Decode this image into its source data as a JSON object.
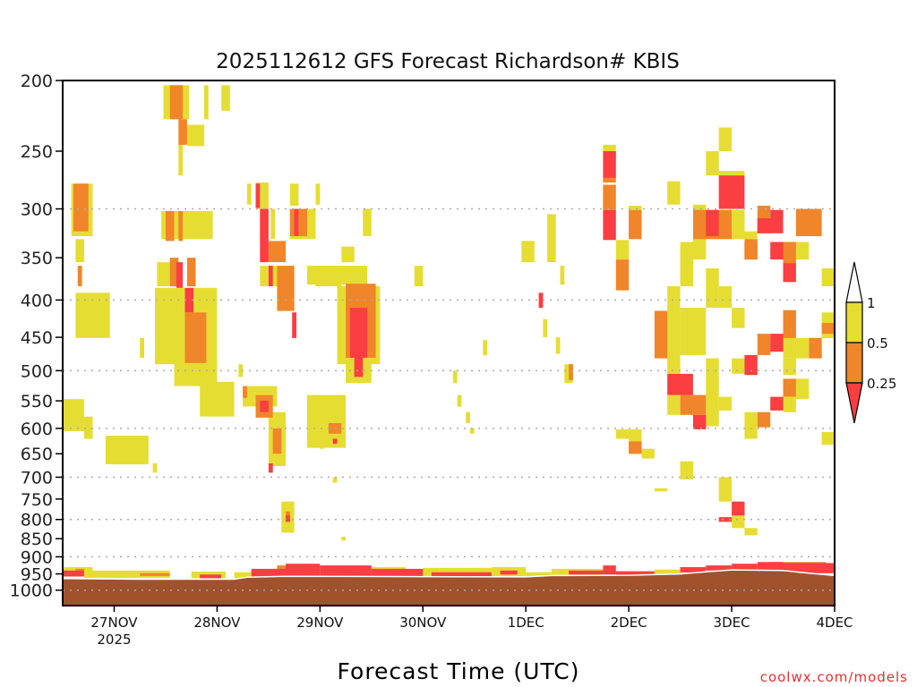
{
  "chart_data": {
    "type": "heatmap",
    "title": "2025112612 GFS Forecast Richardson# KBIS",
    "xlabel": "Forecast Time (UTC)",
    "ylabel": "",
    "credit": "coolwx.com/models",
    "x_units": "hours since 26NOV2025 12Z",
    "xlim": [
      0,
      180
    ],
    "ylim": [
      200,
      1050
    ],
    "y_scale": "log-pressure (inverted)",
    "grid": "dotted at 300,400,500,600,700,800,900,1000",
    "y_ticks": [
      200,
      250,
      300,
      350,
      400,
      450,
      500,
      550,
      600,
      650,
      700,
      750,
      800,
      850,
      900,
      950,
      1000
    ],
    "y_gridlines": [
      300,
      400,
      500,
      600,
      700,
      800,
      900,
      1000
    ],
    "x_ticks": [
      {
        "hour": 12,
        "label": "27NOV",
        "sublabel": "2025"
      },
      {
        "hour": 36,
        "label": "28NOV"
      },
      {
        "hour": 60,
        "label": "29NOV"
      },
      {
        "hour": 84,
        "label": "30NOV"
      },
      {
        "hour": 108,
        "label": "1DEC"
      },
      {
        "hour": 132,
        "label": "2DEC"
      },
      {
        "hour": 156,
        "label": "3DEC"
      },
      {
        "hour": 180,
        "label": "4DEC"
      }
    ],
    "legend": {
      "placement": "right",
      "levels": [
        "1",
        "0.5",
        "0.25"
      ],
      "categories": [
        {
          "range": "0.5-1",
          "color": "#e6dd33"
        },
        {
          "range": "0.25-0.5",
          "color": "#f0852a"
        },
        {
          "range": "<0.25",
          "color": "#fb3e41"
        }
      ]
    },
    "colors": {
      "1": "#e6dd33",
      "2": "#f0852a",
      "3": "#fb3e41",
      "ground": "#a0522d"
    },
    "cell_format": [
      "hour_start",
      "hour_end",
      "p_top",
      "p_bottom",
      "category"
    ],
    "cells": [
      [
        2,
        7,
        277,
        327,
        1
      ],
      [
        2.5,
        6,
        277,
        322,
        2
      ],
      [
        3,
        5,
        330,
        355,
        1
      ],
      [
        3.5,
        4.5,
        359,
        383,
        2
      ],
      [
        3,
        11,
        391,
        451,
        1
      ],
      [
        0,
        5,
        547,
        605,
        1
      ],
      [
        5,
        7,
        578,
        620,
        1
      ],
      [
        10,
        20,
        614,
        672,
        1
      ],
      [
        12,
        14,
        630,
        645,
        1
      ],
      [
        21,
        22,
        670,
        690,
        1
      ],
      [
        18,
        19,
        451,
        480,
        1
      ],
      [
        23.5,
        29.5,
        203,
        226,
        1
      ],
      [
        25,
        28,
        203,
        226,
        2
      ],
      [
        27,
        29,
        226,
        245,
        2
      ],
      [
        29,
        33,
        230,
        246,
        1
      ],
      [
        27,
        28,
        245,
        270,
        1
      ],
      [
        33,
        34,
        203,
        226,
        1
      ],
      [
        37,
        39,
        203,
        220,
        1
      ],
      [
        23,
        35,
        302,
        330,
        1
      ],
      [
        24,
        26,
        302,
        332,
        2
      ],
      [
        27,
        28,
        302,
        332,
        2
      ],
      [
        22,
        25,
        355,
        383,
        1
      ],
      [
        25,
        27,
        350,
        383,
        2
      ],
      [
        29,
        31,
        350,
        383,
        2
      ],
      [
        21.5,
        36,
        385,
        490,
        1
      ],
      [
        28.5,
        33.5,
        416,
        488,
        2
      ],
      [
        28.5,
        30.5,
        385,
        416,
        3
      ],
      [
        26.5,
        28,
        355,
        385,
        3
      ],
      [
        26,
        36,
        480,
        525,
        1
      ],
      [
        32,
        40,
        518,
        578,
        1
      ],
      [
        41,
        42,
        490,
        510,
        1
      ],
      [
        42,
        43,
        525,
        545,
        2
      ],
      [
        43,
        44,
        277,
        296,
        1
      ],
      [
        45,
        48,
        276,
        300,
        1
      ],
      [
        45,
        46,
        277,
        299,
        3
      ],
      [
        53,
        55,
        277,
        297,
        1
      ],
      [
        59,
        60,
        277,
        296,
        1
      ],
      [
        46,
        48,
        300,
        355,
        3
      ],
      [
        48,
        52,
        332,
        355,
        2
      ],
      [
        48.5,
        49.5,
        300,
        330,
        1
      ],
      [
        53,
        59,
        300,
        330,
        1
      ],
      [
        53,
        57,
        300,
        327,
        2
      ],
      [
        54,
        55,
        300,
        327,
        3
      ],
      [
        70,
        72,
        300,
        327,
        1
      ],
      [
        65,
        68,
        338,
        355,
        1
      ],
      [
        57,
        71,
        359,
        381,
        1
      ],
      [
        46,
        50,
        359,
        383,
        1
      ],
      [
        48,
        49,
        359,
        383,
        3
      ],
      [
        50,
        54,
        359,
        414,
        2
      ],
      [
        53.5,
        54.5,
        416,
        451,
        3
      ],
      [
        59,
        65,
        359,
        383,
        1
      ],
      [
        64,
        74,
        383,
        490,
        1
      ],
      [
        66,
        73,
        380,
        480,
        2
      ],
      [
        67,
        71,
        410,
        480,
        3
      ],
      [
        66,
        72,
        454,
        520,
        1
      ],
      [
        68,
        70,
        454,
        510,
        3
      ],
      [
        42,
        50,
        525,
        560,
        1
      ],
      [
        45,
        49,
        540,
        580,
        2
      ],
      [
        46,
        48,
        550,
        570,
        3
      ],
      [
        48,
        52,
        570,
        676,
        1
      ],
      [
        49,
        51,
        600,
        650,
        2
      ],
      [
        48,
        49,
        670,
        690,
        3
      ],
      [
        51,
        54,
        756,
        834,
        1
      ],
      [
        52,
        53,
        780,
        800,
        2
      ],
      [
        52,
        53,
        790,
        806,
        3
      ],
      [
        57,
        66,
        540,
        638,
        1
      ],
      [
        62,
        65,
        590,
        610,
        2
      ],
      [
        63,
        64,
        620,
        630,
        3
      ],
      [
        63,
        64,
        700,
        712,
        1
      ],
      [
        65,
        66,
        845,
        855,
        1
      ],
      [
        60,
        61,
        620,
        640,
        1
      ],
      [
        82,
        84,
        359,
        383,
        1
      ],
      [
        91,
        92,
        500,
        520,
        1
      ],
      [
        92,
        93,
        540,
        560,
        1
      ],
      [
        94,
        95,
        570,
        590,
        1
      ],
      [
        95,
        96,
        600,
        610,
        1
      ],
      [
        98,
        99,
        454,
        476,
        1
      ],
      [
        107,
        110,
        332,
        355,
        1
      ],
      [
        111,
        112,
        391,
        410,
        3
      ],
      [
        112,
        113,
        425,
        450,
        1
      ],
      [
        113,
        115,
        305,
        355,
        1
      ],
      [
        115,
        116,
        450,
        474,
        1
      ],
      [
        116,
        117,
        359,
        381,
        1
      ],
      [
        117,
        119,
        490,
        520,
        1
      ],
      [
        118,
        119,
        490,
        515,
        2
      ],
      [
        126,
        129,
        245,
        255,
        1
      ],
      [
        126,
        129,
        250,
        272,
        3
      ],
      [
        126,
        129,
        272,
        276,
        2
      ],
      [
        126,
        129,
        278,
        301,
        2
      ],
      [
        126,
        129,
        301,
        331,
        3
      ],
      [
        129,
        132,
        331,
        352,
        1
      ],
      [
        129,
        132,
        352,
        388,
        2
      ],
      [
        132,
        135,
        297,
        301,
        1
      ],
      [
        132,
        135,
        301,
        330,
        2
      ],
      [
        129,
        132,
        602,
        620,
        1
      ],
      [
        132,
        135,
        602,
        650,
        1
      ],
      [
        132,
        135,
        625,
        650,
        2
      ],
      [
        135,
        138,
        640,
        660,
        1
      ],
      [
        138,
        141,
        725,
        732,
        1
      ],
      [
        141,
        144,
        275,
        296,
        1
      ],
      [
        150,
        153,
        250,
        270,
        1
      ],
      [
        153,
        156,
        232,
        250,
        1
      ],
      [
        153,
        159,
        266,
        272,
        1
      ],
      [
        153,
        159,
        270,
        300,
        3
      ],
      [
        147,
        156,
        301,
        330,
        2
      ],
      [
        150,
        153,
        301,
        327,
        3
      ],
      [
        156,
        159,
        301,
        330,
        1
      ],
      [
        159,
        162,
        322,
        330,
        1
      ],
      [
        159,
        162,
        330,
        352,
        2
      ],
      [
        162,
        165,
        297,
        324,
        2
      ],
      [
        162,
        168,
        309,
        324,
        3
      ],
      [
        165,
        168,
        301,
        309,
        3
      ],
      [
        171,
        177,
        300,
        327,
        2
      ],
      [
        165,
        168,
        333,
        352,
        3
      ],
      [
        168,
        171,
        333,
        356,
        2
      ],
      [
        168,
        171,
        356,
        378,
        3
      ],
      [
        171,
        174,
        333,
        352,
        1
      ],
      [
        177,
        180,
        362,
        383,
        1
      ],
      [
        159,
        162,
        333,
        352,
        2
      ],
      [
        147,
        150,
        296,
        352,
        1
      ],
      [
        144,
        147,
        333,
        383,
        1
      ],
      [
        150,
        153,
        362,
        410,
        1
      ],
      [
        153,
        156,
        383,
        410,
        1
      ],
      [
        141,
        144,
        383,
        505,
        1
      ],
      [
        138,
        141,
        414,
        481,
        2
      ],
      [
        144,
        150,
        410,
        476,
        1
      ],
      [
        156,
        159,
        410,
        437,
        1
      ],
      [
        141,
        147,
        505,
        540,
        3
      ],
      [
        141,
        144,
        540,
        575,
        1
      ],
      [
        144,
        150,
        540,
        575,
        2
      ],
      [
        147,
        150,
        575,
        602,
        3
      ],
      [
        150,
        153,
        481,
        596,
        1
      ],
      [
        153,
        156,
        543,
        567,
        1
      ],
      [
        159,
        162,
        476,
        507,
        3
      ],
      [
        156,
        159,
        481,
        505,
        1
      ],
      [
        159,
        162,
        570,
        620,
        1
      ],
      [
        162,
        165,
        570,
        598,
        2
      ],
      [
        165,
        168,
        445,
        471,
        3
      ],
      [
        162,
        165,
        445,
        476,
        2
      ],
      [
        168,
        171,
        413,
        451,
        2
      ],
      [
        168,
        174,
        451,
        481,
        1
      ],
      [
        174,
        177,
        451,
        481,
        2
      ],
      [
        177,
        180,
        416,
        451,
        1
      ],
      [
        177,
        180,
        430,
        445,
        2
      ],
      [
        168,
        171,
        481,
        507,
        1
      ],
      [
        168,
        171,
        513,
        543,
        2
      ],
      [
        171,
        174,
        513,
        547,
        1
      ],
      [
        165,
        168,
        543,
        567,
        3
      ],
      [
        168,
        171,
        543,
        570,
        1
      ],
      [
        177,
        180,
        607,
        632,
        1
      ],
      [
        144,
        147,
        666,
        705,
        1
      ],
      [
        153,
        156,
        700,
        756,
        1
      ],
      [
        156,
        159,
        756,
        790,
        3
      ],
      [
        156,
        159,
        790,
        822,
        1
      ],
      [
        153,
        156,
        794,
        806,
        3
      ],
      [
        159,
        162,
        822,
        841,
        1
      ],
      [
        0,
        7,
        930,
        958,
        1
      ],
      [
        0,
        5,
        940,
        958,
        3
      ],
      [
        3,
        5,
        935,
        948,
        2
      ],
      [
        5,
        25,
        940,
        962,
        1
      ],
      [
        18,
        25,
        948,
        956,
        2
      ],
      [
        30,
        38,
        943,
        963,
        1
      ],
      [
        32,
        37,
        952,
        963,
        3
      ],
      [
        40,
        44,
        945,
        963,
        1
      ],
      [
        44,
        52,
        935,
        958,
        3
      ],
      [
        52,
        60,
        920,
        957,
        3
      ],
      [
        50,
        56,
        925,
        940,
        2
      ],
      [
        60,
        72,
        925,
        957,
        3
      ],
      [
        72,
        84,
        935,
        957,
        3
      ],
      [
        72,
        80,
        930,
        942,
        1
      ],
      [
        84,
        100,
        932,
        957,
        1
      ],
      [
        86,
        100,
        945,
        957,
        3
      ],
      [
        100,
        108,
        930,
        957,
        1
      ],
      [
        102,
        106,
        940,
        952,
        3
      ],
      [
        108,
        114,
        945,
        957,
        1
      ],
      [
        114,
        126,
        935,
        955,
        1
      ],
      [
        118,
        126,
        940,
        952,
        3
      ],
      [
        126,
        129,
        925,
        952,
        3
      ],
      [
        129,
        138,
        942,
        954,
        3
      ],
      [
        138,
        144,
        937,
        950,
        1
      ],
      [
        144,
        150,
        930,
        946,
        3
      ],
      [
        150,
        156,
        925,
        940,
        3
      ],
      [
        156,
        162,
        920,
        938,
        3
      ],
      [
        162,
        168,
        915,
        940,
        3
      ],
      [
        168,
        180,
        918,
        948,
        3
      ],
      [
        165,
        178,
        915,
        925,
        2
      ],
      [
        177,
        180,
        930,
        940,
        2
      ]
    ],
    "surface_pressure": [
      [
        0,
        964
      ],
      [
        18,
        966
      ],
      [
        40,
        966
      ],
      [
        43,
        960
      ],
      [
        52,
        957
      ],
      [
        108,
        959
      ],
      [
        114,
        955
      ],
      [
        132,
        954
      ],
      [
        144,
        950
      ],
      [
        150,
        944
      ],
      [
        156,
        938
      ],
      [
        168,
        940
      ],
      [
        174,
        948
      ],
      [
        180,
        955
      ]
    ]
  }
}
